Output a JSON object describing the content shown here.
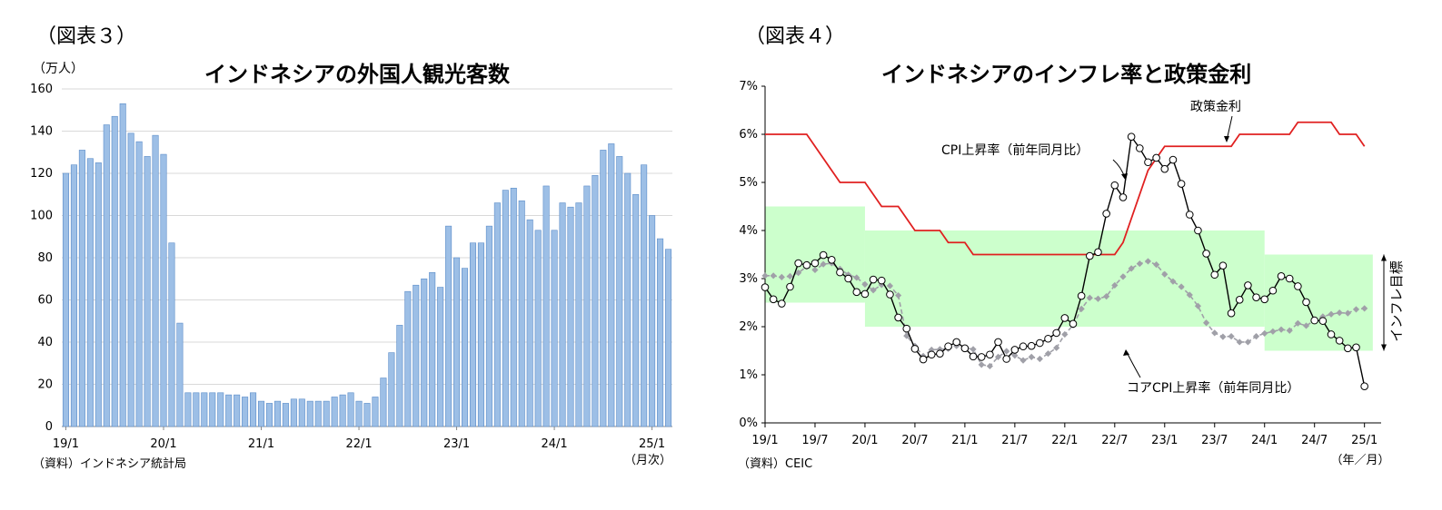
{
  "figure3": {
    "label": "（図表３）",
    "source": "（資料）インドネシア統計局"
  },
  "figure4": {
    "label": "（図表４）",
    "source": "（資料）CEIC"
  },
  "chart_data": [
    {
      "type": "bar",
      "title": "インドネシアの外国人観光客数",
      "unit_label": "（万人）",
      "period_label": "（月次）",
      "xlabel": "",
      "ylabel": "",
      "ylim": [
        0,
        160
      ],
      "yticks": [
        "0",
        "20",
        "40",
        "60",
        "80",
        "100",
        "120",
        "140",
        "160"
      ],
      "xtick_labels": [
        "19/1",
        "20/1",
        "21/1",
        "22/1",
        "23/1",
        "24/1",
        "25/1"
      ],
      "grid": true,
      "bar_color": "#9DBFE6",
      "values": [
        120,
        124,
        131,
        127,
        125,
        143,
        147,
        153,
        139,
        135,
        128,
        138,
        129,
        87,
        49,
        16,
        16,
        16,
        16,
        16,
        15,
        15,
        14,
        16,
        12,
        11,
        12,
        11,
        13,
        13,
        12,
        12,
        12,
        14,
        15,
        16,
        12,
        11,
        14,
        23,
        35,
        48,
        64,
        67,
        70,
        73,
        66,
        95,
        80,
        75,
        87,
        87,
        95,
        106,
        112,
        113,
        107,
        98,
        93,
        114,
        93,
        106,
        104,
        106,
        114,
        119,
        131,
        134,
        128,
        120,
        110,
        124,
        100,
        89,
        84
      ]
    },
    {
      "type": "line",
      "title": "インドネシアのインフレ率と政策金利",
      "period_label": "（年／月）",
      "xlabel": "",
      "ylabel": "",
      "ylim": [
        0,
        7
      ],
      "yticks": [
        "0%",
        "1%",
        "2%",
        "3%",
        "4%",
        "5%",
        "6%",
        "7%"
      ],
      "xtick_labels": [
        "19/1",
        "19/7",
        "20/1",
        "20/7",
        "21/1",
        "21/7",
        "22/1",
        "22/7",
        "23/1",
        "23/7",
        "24/1",
        "24/7",
        "25/1"
      ],
      "target_label": "インフレ目標",
      "target_band": [
        {
          "from": "2019/01",
          "to": "2020/01",
          "low": 2.5,
          "high": 4.5
        },
        {
          "from": "2020/01",
          "to": "2024/01",
          "low": 2.0,
          "high": 4.0
        },
        {
          "from": "2024/01",
          "to": "2025/02",
          "low": 1.5,
          "high": 3.5
        }
      ],
      "series": [
        {
          "name": "CPI上昇率（前年同月比）",
          "color": "#000000",
          "values": [
            2.82,
            2.57,
            2.48,
            2.83,
            3.32,
            3.28,
            3.32,
            3.49,
            3.39,
            3.13,
            3.0,
            2.72,
            2.68,
            2.98,
            2.96,
            2.67,
            2.19,
            1.96,
            1.54,
            1.32,
            1.42,
            1.44,
            1.59,
            1.68,
            1.55,
            1.38,
            1.37,
            1.42,
            1.68,
            1.33,
            1.52,
            1.59,
            1.6,
            1.66,
            1.75,
            1.87,
            2.18,
            2.06,
            2.64,
            3.47,
            3.55,
            4.35,
            4.94,
            4.69,
            5.95,
            5.71,
            5.42,
            5.51,
            5.28,
            5.47,
            4.97,
            4.33,
            4.0,
            3.52,
            3.08,
            3.27,
            2.28,
            2.56,
            2.86,
            2.61,
            2.57,
            2.75,
            3.05,
            3.0,
            2.84,
            2.51,
            2.13,
            2.12,
            1.84,
            1.71,
            1.55,
            1.57,
            0.76
          ]
        },
        {
          "name": "コアCPI上昇率（前年同月比）",
          "color": "#A0A0A8",
          "values": [
            3.06,
            3.06,
            3.03,
            3.05,
            3.12,
            3.25,
            3.18,
            3.3,
            3.32,
            3.2,
            3.08,
            3.02,
            2.88,
            2.76,
            2.87,
            2.85,
            2.65,
            1.81,
            1.6,
            1.39,
            1.52,
            1.53,
            1.54,
            1.6,
            1.56,
            1.53,
            1.21,
            1.18,
            1.37,
            1.49,
            1.4,
            1.3,
            1.37,
            1.33,
            1.44,
            1.56,
            1.84,
            2.03,
            2.37,
            2.6,
            2.58,
            2.63,
            2.86,
            3.04,
            3.21,
            3.31,
            3.36,
            3.29,
            3.09,
            2.94,
            2.83,
            2.66,
            2.43,
            2.08,
            1.87,
            1.79,
            1.8,
            1.68,
            1.68,
            1.8,
            1.86,
            1.9,
            1.94,
            1.92,
            2.07,
            2.02,
            2.13,
            2.21,
            2.26,
            2.29,
            2.28,
            2.36,
            2.38
          ]
        },
        {
          "name": "政策金利",
          "color": "#E02020",
          "values": [
            6.0,
            6.0,
            6.0,
            6.0,
            6.0,
            6.0,
            5.75,
            5.5,
            5.25,
            5.0,
            5.0,
            5.0,
            5.0,
            4.75,
            4.5,
            4.5,
            4.5,
            4.25,
            4.0,
            4.0,
            4.0,
            4.0,
            3.75,
            3.75,
            3.75,
            3.5,
            3.5,
            3.5,
            3.5,
            3.5,
            3.5,
            3.5,
            3.5,
            3.5,
            3.5,
            3.5,
            3.5,
            3.5,
            3.5,
            3.5,
            3.5,
            3.5,
            3.5,
            3.75,
            4.25,
            4.75,
            5.25,
            5.5,
            5.75,
            5.75,
            5.75,
            5.75,
            5.75,
            5.75,
            5.75,
            5.75,
            5.75,
            6.0,
            6.0,
            6.0,
            6.0,
            6.0,
            6.0,
            6.0,
            6.25,
            6.25,
            6.25,
            6.25,
            6.25,
            6.0,
            6.0,
            6.0,
            5.75
          ]
        }
      ]
    }
  ]
}
